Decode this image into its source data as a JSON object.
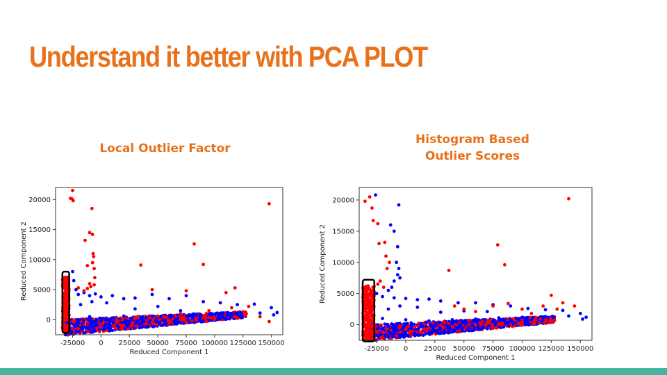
{
  "slide": {
    "title": "Understand it better with PCA PLOT",
    "accent_color": "#e8711a",
    "footer_color": "#45b39d"
  },
  "chart_data": [
    {
      "type": "scatter",
      "title": "Local Outlier Factor",
      "xlabel": "Reduced Component 1",
      "ylabel": "Reduced Component 2",
      "xlim": [
        -40000,
        160000
      ],
      "ylim": [
        -2500,
        22000
      ],
      "xticks": [
        "-25000",
        "0",
        "25000",
        "50000",
        "75000",
        "100000",
        "125000",
        "150000"
      ],
      "xtick_values": [
        -25000,
        0,
        25000,
        50000,
        75000,
        100000,
        125000,
        150000
      ],
      "yticks": [
        "0",
        "5000",
        "10000",
        "15000",
        "20000"
      ],
      "ytick_values": [
        0,
        5000,
        10000,
        15000,
        20000
      ],
      "highlight_box": {
        "x": [
          -34000,
          -28000
        ],
        "y": [
          -2200,
          8000
        ]
      },
      "series": [
        {
          "color": "#0000ff",
          "points": [
            [
              -25000,
              8000
            ],
            [
              -24000,
              6500
            ],
            [
              -22000,
              5000
            ],
            [
              -20000,
              4200
            ],
            [
              -15000,
              4500
            ],
            [
              -10000,
              4000
            ],
            [
              -5000,
              4300
            ],
            [
              0,
              3800
            ],
            [
              10000,
              4000
            ],
            [
              20000,
              3500
            ],
            [
              30000,
              3600
            ],
            [
              45000,
              4200
            ],
            [
              60000,
              3500
            ],
            [
              75000,
              4000
            ],
            [
              90000,
              3000
            ],
            [
              105000,
              2800
            ],
            [
              120000,
              2500
            ],
            [
              135000,
              2600
            ],
            [
              150000,
              2000
            ],
            [
              155000,
              1200
            ],
            [
              -30000,
              -500
            ],
            [
              -20000,
              0
            ],
            [
              -10000,
              500
            ],
            [
              0,
              200
            ],
            [
              20000,
              600
            ],
            [
              40000,
              300
            ],
            [
              60000,
              500
            ],
            [
              80000,
              700
            ],
            [
              100000,
              900
            ],
            [
              120000,
              1000
            ],
            [
              140000,
              1100
            ],
            [
              152000,
              800
            ],
            [
              30000,
              1800
            ],
            [
              50000,
              2200
            ],
            [
              70000,
              1500
            ],
            [
              -18000,
              2500
            ],
            [
              -8000,
              3000
            ],
            [
              5000,
              2800
            ]
          ]
        },
        {
          "color": "#ff0000",
          "points": [
            [
              -25000,
              21500
            ],
            [
              -27000,
              20200
            ],
            [
              -25500,
              20100
            ],
            [
              -24500,
              19800
            ],
            [
              -8000,
              18500
            ],
            [
              148000,
              19300
            ],
            [
              -10000,
              14500
            ],
            [
              -14000,
              13200
            ],
            [
              -7500,
              14200
            ],
            [
              -7000,
              11000
            ],
            [
              -6500,
              10500
            ],
            [
              -7500,
              9500
            ],
            [
              -12000,
              9000
            ],
            [
              -6000,
              8500
            ],
            [
              35000,
              9100
            ],
            [
              90000,
              9200
            ],
            [
              82000,
              12600
            ],
            [
              -5500,
              7000
            ],
            [
              -10000,
              6000
            ],
            [
              -9000,
              5500
            ],
            [
              -6000,
              5800
            ],
            [
              -12000,
              5200
            ],
            [
              -15000,
              4800
            ],
            [
              -20000,
              5300
            ],
            [
              45000,
              5000
            ],
            [
              75000,
              4800
            ],
            [
              110000,
              4500
            ],
            [
              118000,
              5300
            ],
            [
              -33000,
              6000
            ],
            [
              -31000,
              4500
            ],
            [
              -30000,
              3000
            ],
            [
              -32000,
              1500
            ],
            [
              -31500,
              500
            ],
            [
              -30500,
              -1000
            ],
            [
              -29500,
              2000
            ],
            [
              -31000,
              -1800
            ],
            [
              -20000,
              -1500
            ],
            [
              0,
              -1300
            ],
            [
              20000,
              -1000
            ],
            [
              40000,
              -700
            ],
            [
              60000,
              -500
            ],
            [
              80000,
              -200
            ],
            [
              100000,
              100
            ],
            [
              120000,
              300
            ],
            [
              140000,
              500
            ],
            [
              148000,
              -300
            ],
            [
              130000,
              2200
            ],
            [
              115000,
              2000
            ],
            [
              95000,
              1500
            ],
            [
              70000,
              1000
            ],
            [
              50000,
              600
            ],
            [
              30000,
              200
            ]
          ]
        }
      ]
    },
    {
      "type": "scatter",
      "title": "Histogram Based\nOutlier Scores",
      "xlabel": "Reduced Component 1",
      "ylabel": "Reduced Component 2",
      "xlim": [
        -40000,
        160000
      ],
      "ylim": [
        -2500,
        22000
      ],
      "xticks": [
        "-25000",
        "0",
        "25000",
        "50000",
        "75000",
        "100000",
        "125000",
        "150000"
      ],
      "xtick_values": [
        -25000,
        0,
        25000,
        50000,
        75000,
        100000,
        125000,
        150000
      ],
      "yticks": [
        "0",
        "5000",
        "10000",
        "15000",
        "20000"
      ],
      "ytick_values": [
        0,
        5000,
        10000,
        15000,
        20000
      ],
      "highlight_box": {
        "x": [
          -37000,
          -27000
        ],
        "y": [
          -2700,
          7200
        ]
      },
      "series": [
        {
          "color": "#0000ff",
          "points": [
            [
              -26000,
              20800
            ],
            [
              -6000,
              19200
            ],
            [
              -13000,
              16000
            ],
            [
              -10000,
              15000
            ],
            [
              -7000,
              12500
            ],
            [
              -8000,
              10000
            ],
            [
              -6000,
              9000
            ],
            [
              -7000,
              8000
            ],
            [
              -10000,
              7000
            ],
            [
              -12000,
              6000
            ],
            [
              -5000,
              7500
            ],
            [
              -15000,
              5500
            ],
            [
              -20000,
              4500
            ],
            [
              -25000,
              5000
            ],
            [
              -10000,
              4300
            ],
            [
              0,
              4200
            ],
            [
              10000,
              4000
            ],
            [
              20000,
              4100
            ],
            [
              30000,
              3800
            ],
            [
              45000,
              3500
            ],
            [
              60000,
              3500
            ],
            [
              75000,
              3200
            ],
            [
              90000,
              3000
            ],
            [
              105000,
              2600
            ],
            [
              120000,
              2400
            ],
            [
              135000,
              2300
            ],
            [
              150000,
              1800
            ],
            [
              155000,
              1200
            ],
            [
              -20000,
              1000
            ],
            [
              0,
              800
            ],
            [
              20000,
              600
            ],
            [
              40000,
              800
            ],
            [
              60000,
              900
            ],
            [
              80000,
              1100
            ],
            [
              100000,
              1200
            ],
            [
              120000,
              1300
            ],
            [
              140000,
              1400
            ],
            [
              152000,
              900
            ],
            [
              30000,
              2000
            ],
            [
              50000,
              2200
            ],
            [
              70000,
              2100
            ],
            [
              -15000,
              2500
            ],
            [
              -5000,
              3000
            ],
            [
              10000,
              2800
            ]
          ]
        },
        {
          "color": "#ff0000",
          "points": [
            [
              -31000,
              20500
            ],
            [
              -35000,
              19800
            ],
            [
              -29000,
              18700
            ],
            [
              -28000,
              16700
            ],
            [
              -24000,
              16200
            ],
            [
              -18000,
              13200
            ],
            [
              -23000,
              13000
            ],
            [
              -17000,
              11000
            ],
            [
              -14000,
              10000
            ],
            [
              -16000,
              9000
            ],
            [
              -22000,
              7000
            ],
            [
              -24000,
              6500
            ],
            [
              -19000,
              6000
            ],
            [
              37000,
              8700
            ],
            [
              79000,
              12800
            ],
            [
              85000,
              9600
            ],
            [
              140000,
              20200
            ],
            [
              -35000,
              6000
            ],
            [
              -34000,
              4500
            ],
            [
              -32000,
              3000
            ],
            [
              -35500,
              1500
            ],
            [
              -33000,
              0
            ],
            [
              -31000,
              -1500
            ],
            [
              -34000,
              -2200
            ],
            [
              -29000,
              2500
            ],
            [
              -30000,
              5500
            ],
            [
              -20000,
              -1200
            ],
            [
              0,
              -800
            ],
            [
              20000,
              -600
            ],
            [
              40000,
              -300
            ],
            [
              60000,
              -100
            ],
            [
              80000,
              200
            ],
            [
              100000,
              400
            ],
            [
              120000,
              700
            ],
            [
              145000,
              3000
            ],
            [
              135000,
              3500
            ],
            [
              130000,
              2500
            ],
            [
              125000,
              4700
            ],
            [
              118000,
              3000
            ],
            [
              100000,
              2500
            ],
            [
              88000,
              3400
            ],
            [
              75000,
              3000
            ],
            [
              60000,
              2100
            ],
            [
              50000,
              2500
            ],
            [
              42000,
              3000
            ],
            [
              108000,
              1800
            ]
          ]
        }
      ]
    }
  ]
}
